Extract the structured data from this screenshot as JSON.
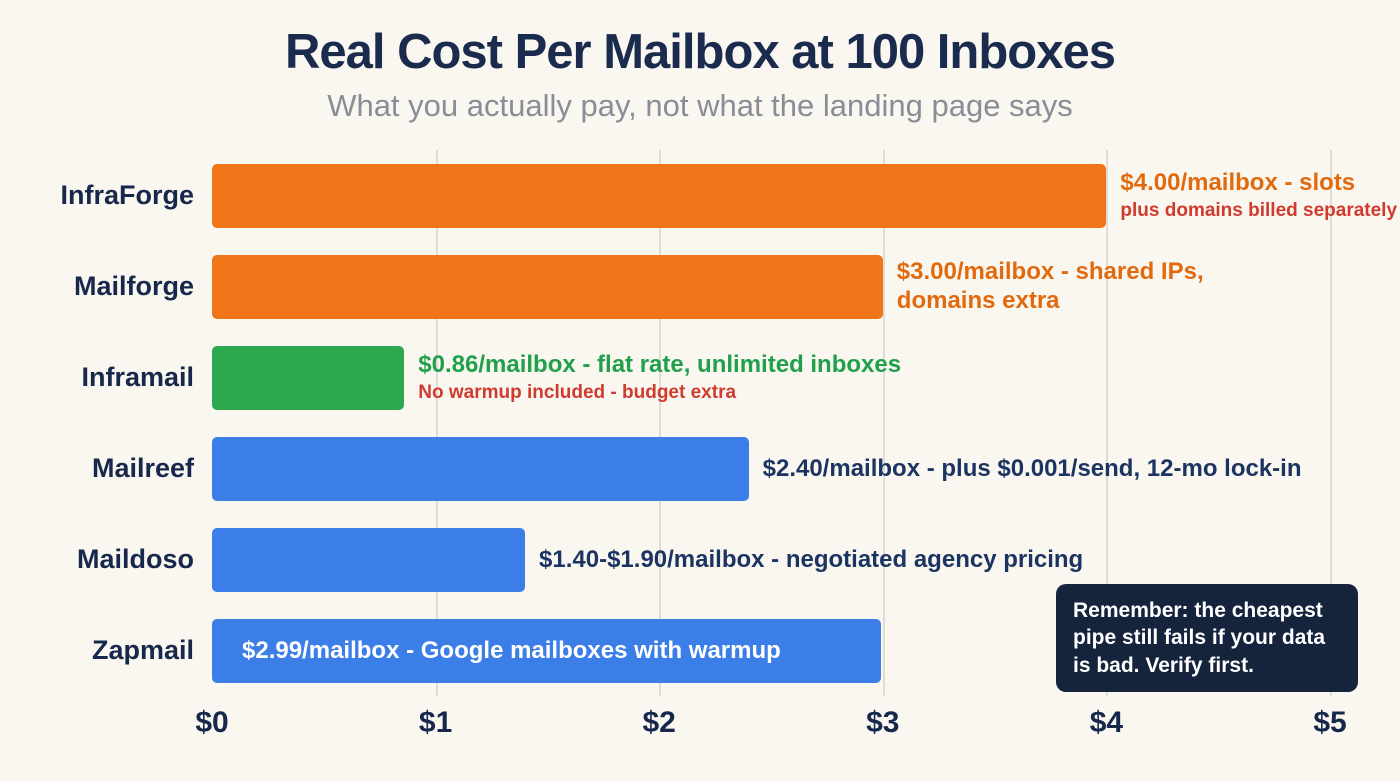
{
  "note": {
    "text": "Remember: the cheapest pipe still fails if your data is bad. Verify first.",
    "background": "#15233C",
    "text_color": "#FFFFFF"
  },
  "chart_data": {
    "type": "bar",
    "orientation": "horizontal",
    "title": "Real Cost Per Mailbox at 100 Inboxes",
    "subtitle": "What you actually pay, not what the landing page says",
    "xlabel": "",
    "ylabel": "",
    "xlim": [
      0,
      5
    ],
    "x_ticks": [
      "$0",
      "$1",
      "$2",
      "$3",
      "$4",
      "$5"
    ],
    "grid": true,
    "categories": [
      "InfraForge",
      "Mailforge",
      "Inframail",
      "Mailreef",
      "Maildoso",
      "Zapmail"
    ],
    "values": [
      4.0,
      3.0,
      0.86,
      2.4,
      1.4,
      2.99
    ],
    "bars": [
      {
        "name": "InfraForge",
        "value": 4.0,
        "color": "#EF7518",
        "line1": "$4.00/mailbox - slots",
        "line1_color": "#E26A0E",
        "line2": "plus domains billed separately",
        "line2_color": "#D03B2E"
      },
      {
        "name": "Mailforge",
        "value": 3.0,
        "color": "#EF7518",
        "line1": "$3.00/mailbox - shared IPs, domains extra",
        "line1_color": "#E26A0E"
      },
      {
        "name": "Inframail",
        "value": 0.86,
        "color": "#2CA94F",
        "line1": "$0.86/mailbox - flat rate, unlimited inboxes",
        "line1_color": "#21A04C",
        "line2": "No warmup included - budget extra",
        "line2_color": "#D03B2E"
      },
      {
        "name": "Mailreef",
        "value": 2.4,
        "color": "#3B7EE8",
        "line1": "$2.40/mailbox - plus $0.001/send, 12-mo lock-in",
        "line1_color": "#1C3461"
      },
      {
        "name": "Maildoso",
        "value": 1.4,
        "color": "#3B7EE8",
        "line1": "$1.40-$1.90/mailbox - negotiated agency pricing",
        "line1_color": "#1C3461"
      },
      {
        "name": "Zapmail",
        "value": 2.99,
        "color": "#3B7EE8",
        "line1": "$2.99/mailbox - Google mailboxes with warmup",
        "line1_color": "#FFFFFF"
      }
    ]
  }
}
